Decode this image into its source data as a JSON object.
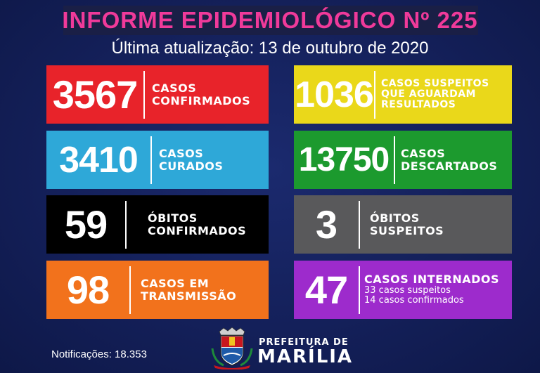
{
  "header": {
    "title": "INFORME EPIDEMIOLÓGICO Nº 225",
    "subtitle": "Última atualização: 13 de outubro de 2020"
  },
  "cards": {
    "confirmados": {
      "value": "3567",
      "line1": "CASOS",
      "line2": "CONFIRMADOS",
      "color": "#e8232a"
    },
    "suspeitos": {
      "value": "1036",
      "line1": "CASOS SUSPEITOS",
      "line2": "QUE AGUARDAM",
      "line3": "RESULTADOS",
      "color": "#ead81a"
    },
    "curados": {
      "value": "3410",
      "line1": "CASOS",
      "line2": "CURADOS",
      "color": "#2ea8d8"
    },
    "descartados": {
      "value": "13750",
      "line1": "CASOS",
      "line2": "DESCARTADOS",
      "color": "#1c9a2e"
    },
    "obitos": {
      "value": "59",
      "line1": "ÓBITOS",
      "line2": "CONFIRMADOS",
      "color": "#000000"
    },
    "obitos_suspeitos": {
      "value": "3",
      "line1": "ÓBITOS",
      "line2": "SUSPEITOS",
      "color": "#59595b"
    },
    "transmissao": {
      "value": "98",
      "line1": "CASOS EM",
      "line2": "TRANSMISSÃO",
      "color": "#f2721c"
    },
    "internados": {
      "value": "47",
      "line1": "CASOS INTERNADOS",
      "sub1": "33 casos suspeitos",
      "sub2": "14 casos confirmados",
      "color": "#9d2bcc"
    }
  },
  "footer": {
    "notificacoes": "Notificações: 18.353",
    "prefeitura_small": "PREFEITURA DE",
    "prefeitura_big": "MARÍLIA"
  }
}
